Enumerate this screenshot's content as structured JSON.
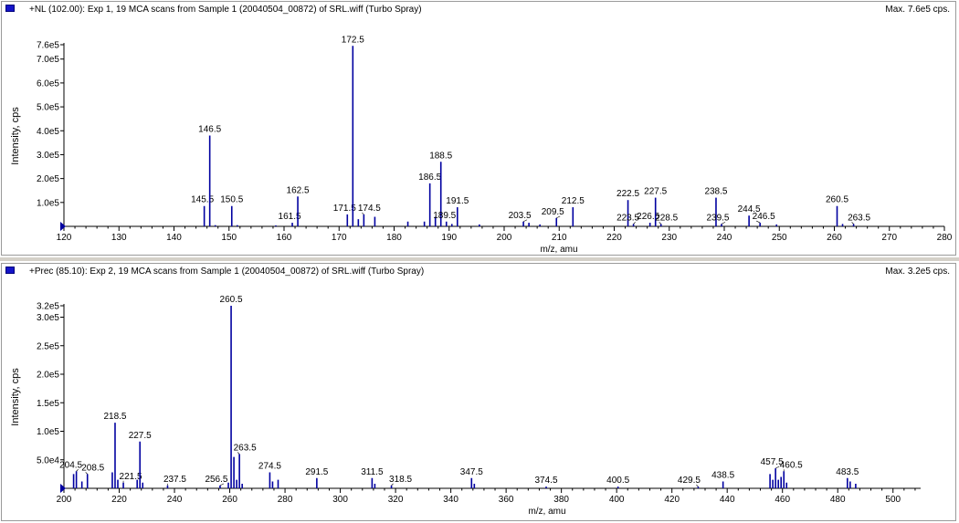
{
  "panels": [
    {
      "title": "+NL (102.00): Exp 1, 19 MCA scans from Sample 1 (20040504_00872) of SRL.wiff (Turbo Spray)",
      "max_label": "Max. 7.6e5 cps.",
      "icon": "spectrum-marker-icon",
      "accent": "#0000a0"
    },
    {
      "title": "+Prec (85.10): Exp 2, 19 MCA scans from Sample 1 (20040504_00872) of SRL.wiff (Turbo Spray)",
      "max_label": "Max. 3.2e5 cps.",
      "icon": "spectrum-marker-icon",
      "accent": "#0000a0"
    }
  ],
  "chart_data": [
    {
      "type": "bar",
      "subtype": "mass-spectrum-stick",
      "xlabel": "m/z, amu",
      "ylabel": "Intensity, cps",
      "xlim": [
        120,
        280
      ],
      "ylim": [
        0,
        760000
      ],
      "x_ticks": [
        120,
        130,
        140,
        150,
        160,
        170,
        180,
        190,
        200,
        210,
        220,
        230,
        240,
        250,
        260,
        270,
        280
      ],
      "y_ticks": [
        {
          "v": 100000,
          "label": "1.0e5"
        },
        {
          "v": 200000,
          "label": "2.0e5"
        },
        {
          "v": 300000,
          "label": "3.0e5"
        },
        {
          "v": 400000,
          "label": "4.0e5"
        },
        {
          "v": 500000,
          "label": "5.0e5"
        },
        {
          "v": 600000,
          "label": "6.0e5"
        },
        {
          "v": 700000,
          "label": "7.0e5"
        },
        {
          "v": 760000,
          "label": "7.6e5"
        }
      ],
      "peaks": [
        {
          "x": 145.5,
          "y": 85000,
          "label": "145.5"
        },
        {
          "x": 146.5,
          "y": 380000,
          "label": "146.5"
        },
        {
          "x": 147.5,
          "y": 5000
        },
        {
          "x": 150.5,
          "y": 85000,
          "label": "150.5"
        },
        {
          "x": 151.5,
          "y": 5000
        },
        {
          "x": 158.5,
          "y": 4000
        },
        {
          "x": 161.5,
          "y": 15000,
          "label": "161.5"
        },
        {
          "x": 162.5,
          "y": 125000,
          "label": "162.5"
        },
        {
          "x": 171.5,
          "y": 50000,
          "label": "171.5"
        },
        {
          "x": 172.5,
          "y": 755000,
          "label": "172.5"
        },
        {
          "x": 173.5,
          "y": 30000
        },
        {
          "x": 174.5,
          "y": 50000,
          "label": "174.5"
        },
        {
          "x": 176.5,
          "y": 40000
        },
        {
          "x": 182.5,
          "y": 20000
        },
        {
          "x": 185.5,
          "y": 20000
        },
        {
          "x": 186.5,
          "y": 180000,
          "label": "186.5"
        },
        {
          "x": 187.5,
          "y": 40000
        },
        {
          "x": 188.5,
          "y": 270000,
          "label": "188.5"
        },
        {
          "x": 189.5,
          "y": 20000,
          "label": "189.5"
        },
        {
          "x": 190.5,
          "y": 10000
        },
        {
          "x": 191.5,
          "y": 80000,
          "label": "191.5"
        },
        {
          "x": 195.5,
          "y": 8000
        },
        {
          "x": 203.5,
          "y": 20000,
          "label": "203.5"
        },
        {
          "x": 204.5,
          "y": 15000
        },
        {
          "x": 206.5,
          "y": 8000
        },
        {
          "x": 209.5,
          "y": 35000,
          "label": "209.5"
        },
        {
          "x": 212.5,
          "y": 80000,
          "label": "212.5"
        },
        {
          "x": 222.5,
          "y": 110000,
          "label": "222.5"
        },
        {
          "x": 223.5,
          "y": 10000,
          "label": "223.5"
        },
        {
          "x": 226.5,
          "y": 15000,
          "label": "226.5"
        },
        {
          "x": 227.5,
          "y": 120000,
          "label": "227.5"
        },
        {
          "x": 228.5,
          "y": 10000,
          "label": "228.5"
        },
        {
          "x": 238.5,
          "y": 120000,
          "label": "238.5"
        },
        {
          "x": 239.5,
          "y": 10000,
          "label": "239.5"
        },
        {
          "x": 244.5,
          "y": 45000,
          "label": "244.5"
        },
        {
          "x": 246.5,
          "y": 15000,
          "label": "246.5"
        },
        {
          "x": 249.5,
          "y": 8000
        },
        {
          "x": 260.5,
          "y": 85000,
          "label": "260.5"
        },
        {
          "x": 261.5,
          "y": 10000
        },
        {
          "x": 263.5,
          "y": 10000,
          "label": "263.5"
        }
      ]
    },
    {
      "type": "bar",
      "subtype": "mass-spectrum-stick",
      "xlabel": "m/z, amu",
      "ylabel": "Intensity, cps",
      "xlim": [
        200,
        510
      ],
      "ylim": [
        0,
        320000
      ],
      "x_ticks": [
        200,
        220,
        240,
        260,
        280,
        300,
        320,
        340,
        360,
        380,
        400,
        420,
        440,
        460,
        480,
        500
      ],
      "y_ticks": [
        {
          "v": 50000,
          "label": "5.0e4"
        },
        {
          "v": 100000,
          "label": "1.0e5"
        },
        {
          "v": 150000,
          "label": "1.5e5"
        },
        {
          "v": 200000,
          "label": "2.0e5"
        },
        {
          "v": 250000,
          "label": "2.5e5"
        },
        {
          "v": 300000,
          "label": "3.0e5"
        },
        {
          "v": 320000,
          "label": "3.2e5"
        }
      ],
      "peaks": [
        {
          "x": 203.5,
          "y": 25000
        },
        {
          "x": 204.5,
          "y": 30000,
          "label": "204.5"
        },
        {
          "x": 206.5,
          "y": 12000
        },
        {
          "x": 208.5,
          "y": 25000,
          "label": "208.5"
        },
        {
          "x": 217.5,
          "y": 28000
        },
        {
          "x": 218.5,
          "y": 115000,
          "label": "218.5"
        },
        {
          "x": 219.5,
          "y": 15000
        },
        {
          "x": 221.5,
          "y": 10000,
          "label": "221.5"
        },
        {
          "x": 226.5,
          "y": 15000
        },
        {
          "x": 227.5,
          "y": 82000,
          "label": "227.5"
        },
        {
          "x": 228.5,
          "y": 10000
        },
        {
          "x": 237.5,
          "y": 5000,
          "label": "237.5"
        },
        {
          "x": 256.5,
          "y": 5000,
          "label": "256.5"
        },
        {
          "x": 259.5,
          "y": 10000
        },
        {
          "x": 260.5,
          "y": 320000,
          "label": "260.5"
        },
        {
          "x": 261.5,
          "y": 55000
        },
        {
          "x": 262.5,
          "y": 15000
        },
        {
          "x": 263.5,
          "y": 60000,
          "label": "263.5"
        },
        {
          "x": 264.5,
          "y": 8000
        },
        {
          "x": 274.5,
          "y": 28000,
          "label": "274.5"
        },
        {
          "x": 275.5,
          "y": 12000
        },
        {
          "x": 277.5,
          "y": 15000
        },
        {
          "x": 291.5,
          "y": 18000,
          "label": "291.5"
        },
        {
          "x": 311.5,
          "y": 18000,
          "label": "311.5"
        },
        {
          "x": 312.5,
          "y": 8000
        },
        {
          "x": 318.5,
          "y": 5000,
          "label": "318.5"
        },
        {
          "x": 347.5,
          "y": 18000,
          "label": "347.5"
        },
        {
          "x": 348.5,
          "y": 8000
        },
        {
          "x": 374.5,
          "y": 3000,
          "label": "374.5"
        },
        {
          "x": 400.5,
          "y": 3000,
          "label": "400.5"
        },
        {
          "x": 429.5,
          "y": 3000,
          "label": "429.5"
        },
        {
          "x": 438.5,
          "y": 12000,
          "label": "438.5"
        },
        {
          "x": 455.5,
          "y": 25000
        },
        {
          "x": 456.5,
          "y": 15000
        },
        {
          "x": 457.5,
          "y": 35000,
          "label": "457.5"
        },
        {
          "x": 458.5,
          "y": 15000
        },
        {
          "x": 459.5,
          "y": 20000
        },
        {
          "x": 460.5,
          "y": 30000,
          "label": "460.5"
        },
        {
          "x": 461.5,
          "y": 10000
        },
        {
          "x": 483.5,
          "y": 18000,
          "label": "483.5"
        },
        {
          "x": 484.5,
          "y": 12000
        },
        {
          "x": 486.5,
          "y": 8000
        }
      ]
    }
  ]
}
